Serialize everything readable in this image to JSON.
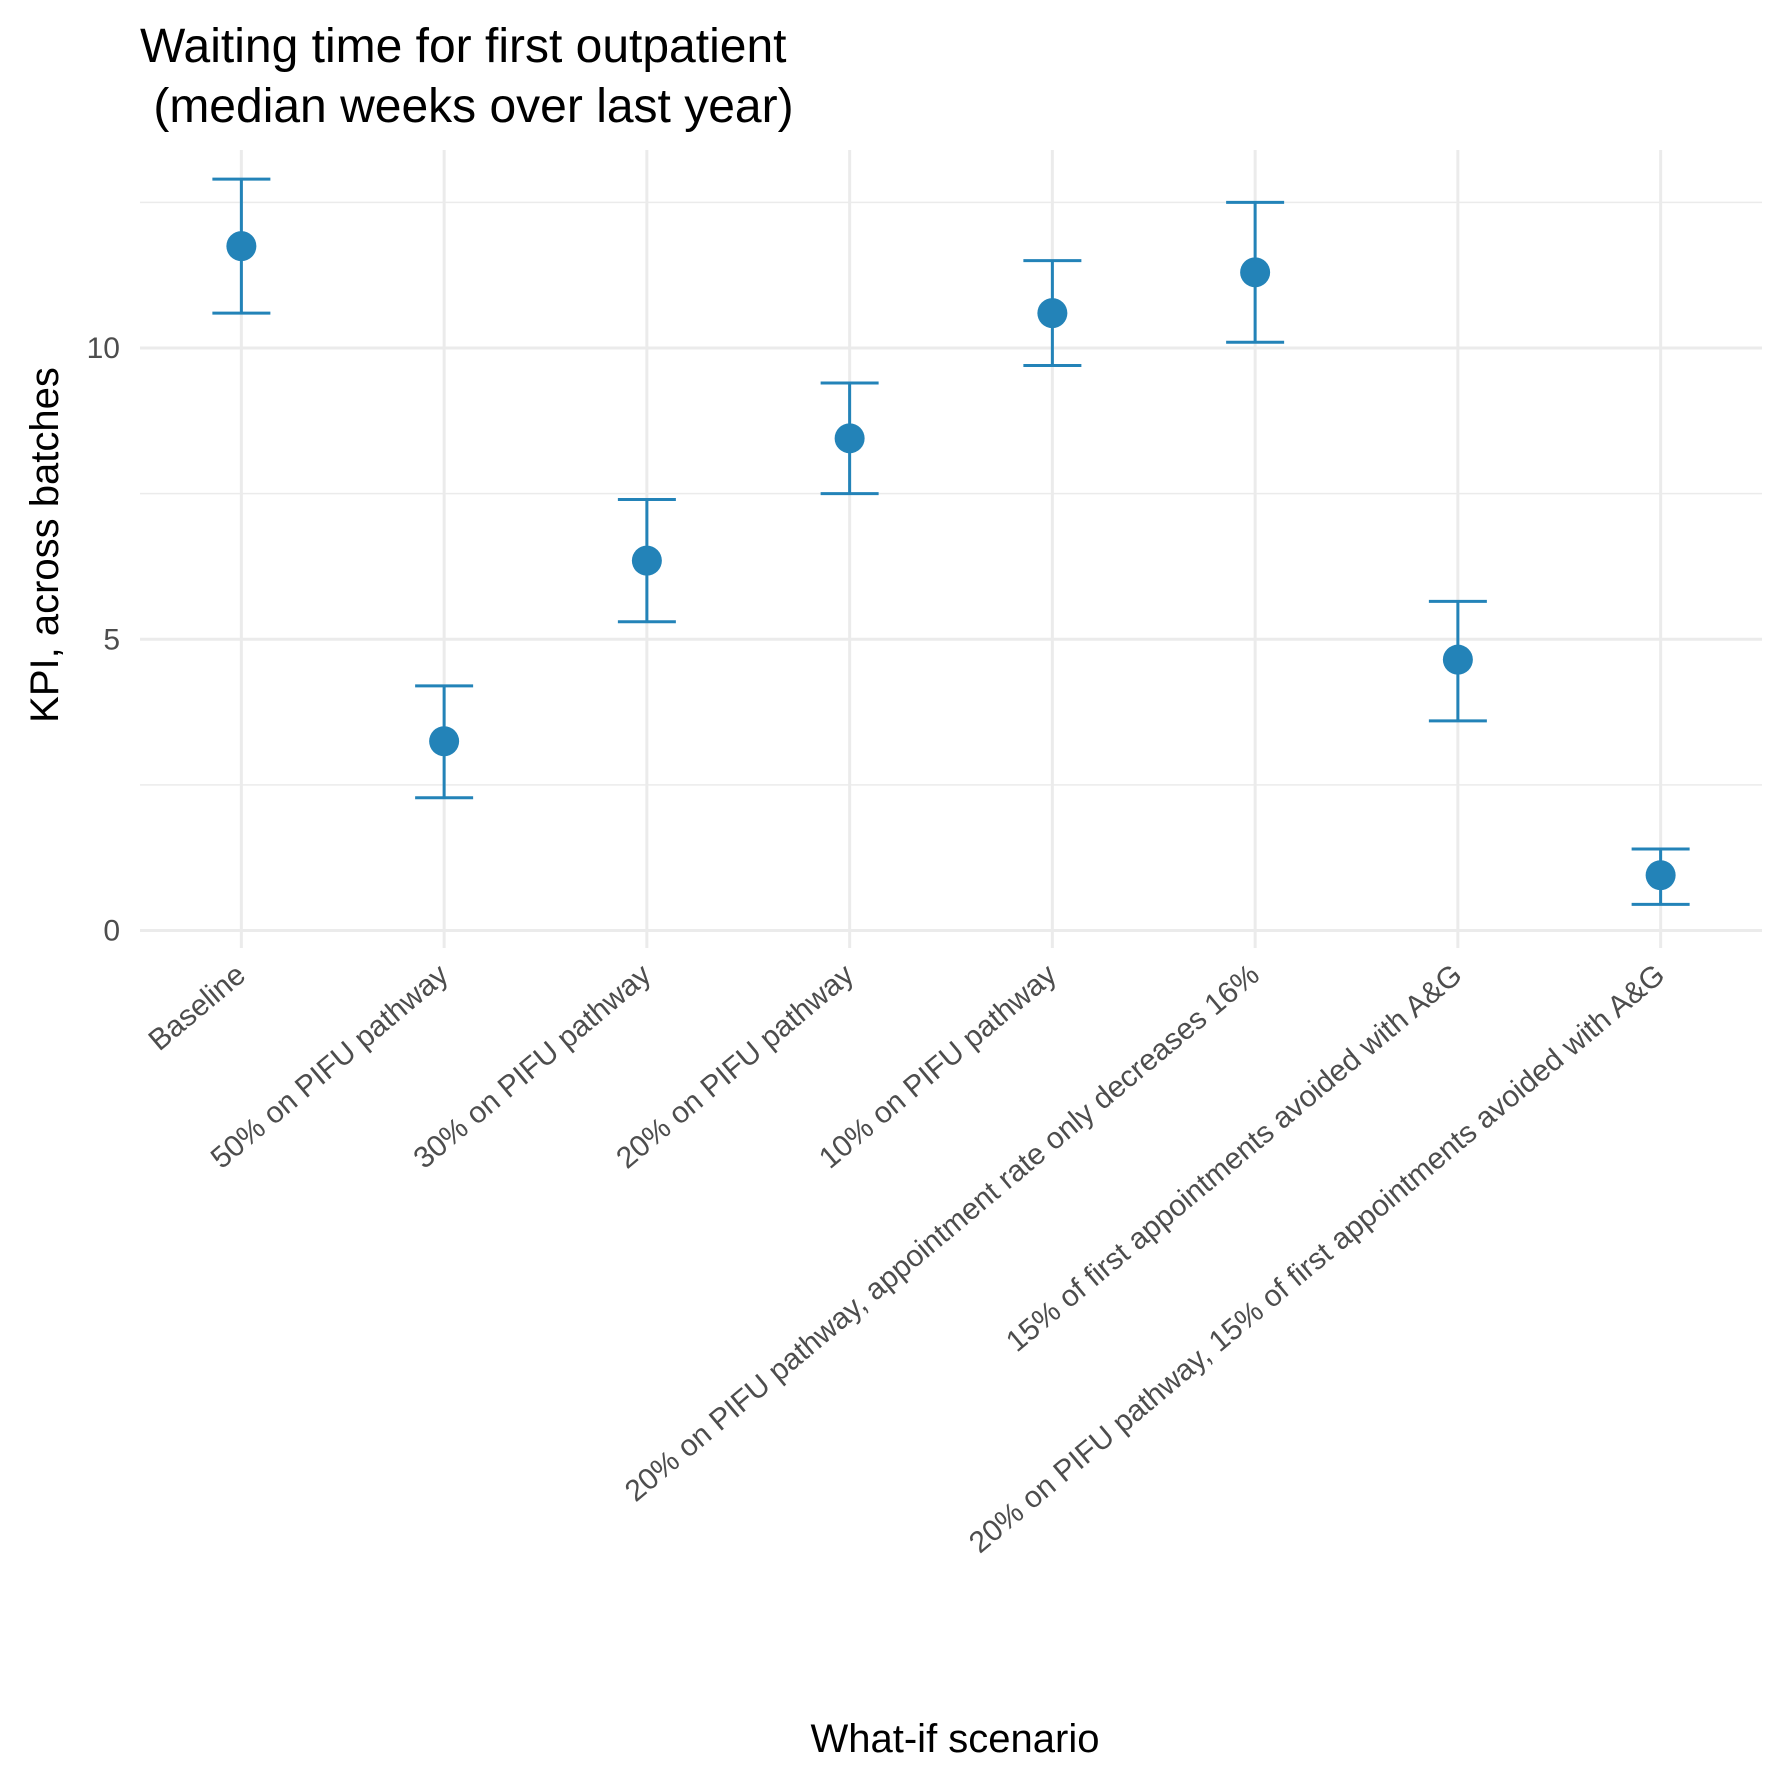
{
  "chart_data": {
    "type": "scatter",
    "title_lines": [
      "Waiting time for first outpatient",
      " (median weeks over last year)"
    ],
    "xlabel": "What-if scenario",
    "ylabel": "KPI, across batches",
    "categories": [
      "Baseline",
      "50% on PIFU pathway",
      "30% on PIFU pathway",
      "20% on PIFU pathway",
      "10% on PIFU pathway",
      "20% on PIFU pathway, appointment rate only decreases 16%",
      "15% of first appointments avoided with A&G",
      "20% on PIFU pathway, 15% of first appointments avoided with A&G"
    ],
    "series": [
      {
        "values": [
          11.75,
          3.25,
          6.35,
          8.45,
          10.6,
          11.3,
          4.65,
          0.95
        ],
        "lower": [
          10.6,
          2.28,
          5.3,
          7.5,
          9.7,
          10.1,
          3.6,
          0.45
        ],
        "upper": [
          12.9,
          4.2,
          7.4,
          9.4,
          11.5,
          12.5,
          5.65,
          1.4
        ]
      }
    ],
    "yticks": [
      0,
      5,
      10
    ],
    "ylim": [
      -0.3,
      13.4
    ],
    "grid": true,
    "legend": "none",
    "color": "#2383b8"
  }
}
